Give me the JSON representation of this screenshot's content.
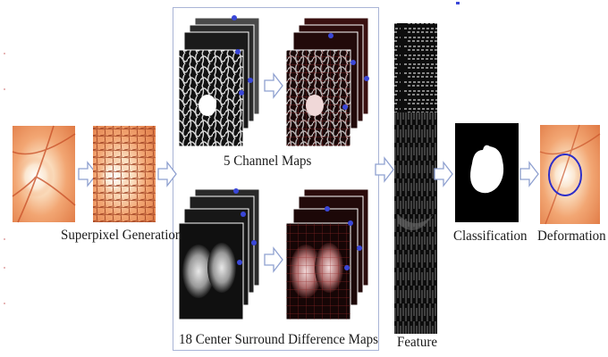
{
  "pipeline": {
    "labels": {
      "superpixel": "Superpixel Generation",
      "channel_maps": "5 Channel Maps",
      "csd_maps": "18 Center Surround Difference Maps",
      "feature": "Feature",
      "classification": "Classification",
      "deformation": "Deformation"
    }
  },
  "colors": {
    "arrow_stroke": "#8ea0d0",
    "arrow_fill": "#ffffff",
    "panel_border": "#a9b4d6",
    "fundus_light": "#fbe3c6",
    "fundus_mid": "#f2a673",
    "fundus_dark": "#d86a3a",
    "superpixel_line": "#9a3a1c",
    "marker_blue": "#3a47d8",
    "contour_blue": "#2e2ec8",
    "map_dark": "#121212",
    "map_red_tint": "#6b1a1a"
  }
}
